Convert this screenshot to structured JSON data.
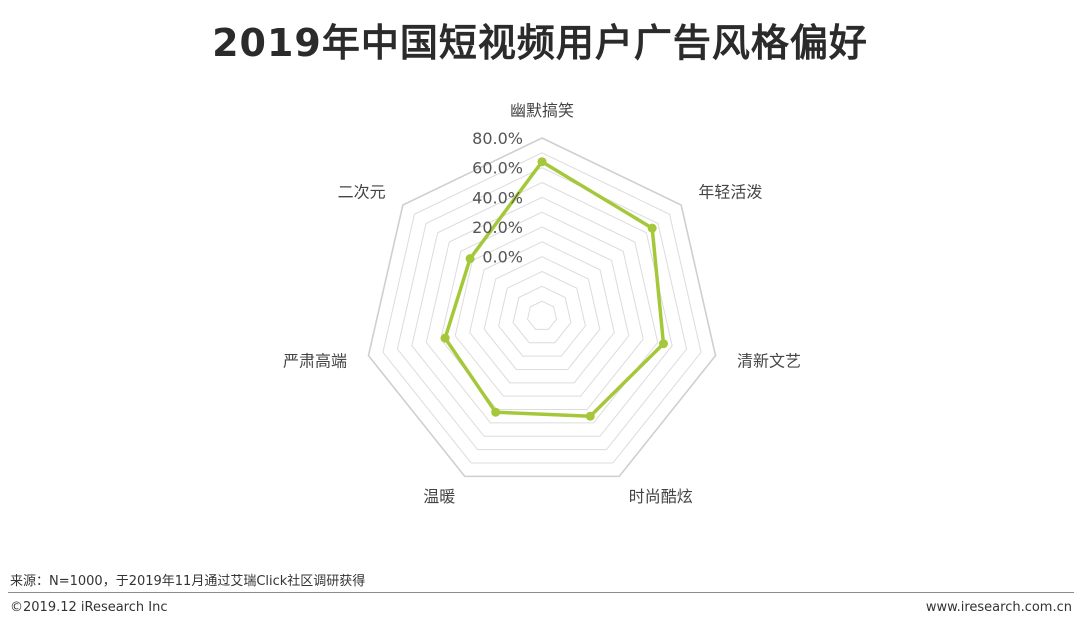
{
  "title": "2019年中国短视频用户广告风格偏好",
  "chart_data": {
    "type": "radar",
    "categories": [
      "幽默搞笑",
      "年轻活泼",
      "清新文艺",
      "时尚酷炫",
      "温暖",
      "严肃高端",
      "二次元"
    ],
    "series": [
      {
        "values": [
          64,
          55,
          44,
          35,
          32,
          27,
          22
        ]
      }
    ],
    "rlim": [
      -40,
      80
    ],
    "tick_labels": [
      "0.0%",
      "20.0%",
      "40.0%",
      "60.0%",
      "80.0%"
    ],
    "grid": true,
    "colors": {
      "series": "#a5c83a",
      "grid": "#dcdcdc"
    }
  },
  "footer": {
    "source": "来源：N=1000，于2019年11月通过艾瑞Click社区调研获得",
    "copyright": "©2019.12 iResearch Inc",
    "website": "www.iresearch.com.cn"
  }
}
